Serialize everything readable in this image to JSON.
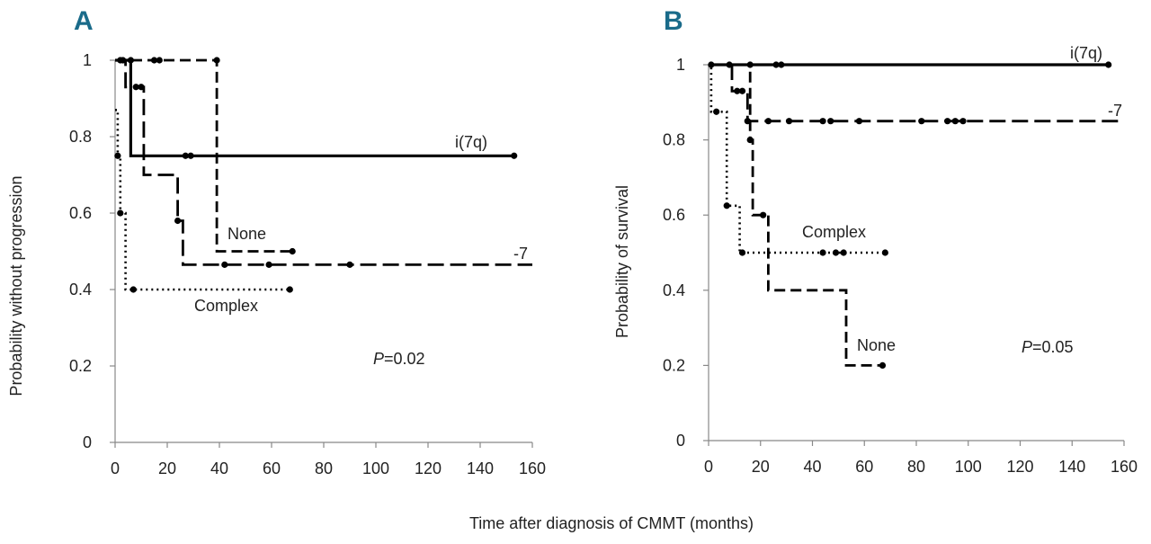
{
  "figure": {
    "shared_xlabel": "Time after diagnosis of CMMT (months)"
  },
  "chart_data": [
    {
      "type": "line",
      "panel": "A",
      "ylabel": "Probability without progression",
      "xlim": [
        0,
        160
      ],
      "ylim": [
        0,
        1
      ],
      "xticks": [
        "0",
        "20",
        "40",
        "60",
        "80",
        "100",
        "120",
        "140",
        "160"
      ],
      "yticks": [
        "0",
        "0.2",
        "0.4",
        "0.6",
        "0.8",
        "1"
      ],
      "pvalue": {
        "italic": "P",
        "rest": "=0.02"
      },
      "series": [
        {
          "name": "i(7q)",
          "style": "solid",
          "steps": [
            [
              0,
              1
            ],
            [
              6,
              1
            ],
            [
              6,
              0.75
            ],
            [
              153,
              0.75
            ]
          ],
          "censor": [
            [
              3,
              1
            ],
            [
              6,
              1
            ],
            [
              27,
              0.75
            ],
            [
              29,
              0.75
            ],
            [
              153,
              0.75
            ]
          ]
        },
        {
          "name": "None",
          "style": "dashed",
          "steps": [
            [
              0,
              1
            ],
            [
              39,
              1
            ],
            [
              39,
              0.5
            ],
            [
              68,
              0.5
            ]
          ],
          "censor": [
            [
              2,
              1
            ],
            [
              15,
              1
            ],
            [
              17,
              1
            ],
            [
              39,
              1
            ],
            [
              68,
              0.5
            ]
          ]
        },
        {
          "name": "-7",
          "style": "longdash",
          "steps": [
            [
              0,
              1
            ],
            [
              4,
              1
            ],
            [
              4,
              0.93
            ],
            [
              11,
              0.93
            ],
            [
              11,
              0.7
            ],
            [
              24,
              0.7
            ],
            [
              24,
              0.58
            ],
            [
              26,
              0.58
            ],
            [
              26,
              0.465
            ],
            [
              160,
              0.465
            ]
          ],
          "censor": [
            [
              8,
              0.93
            ],
            [
              10,
              0.93
            ],
            [
              24,
              0.58
            ],
            [
              42,
              0.465
            ],
            [
              59,
              0.465
            ],
            [
              90,
              0.465
            ]
          ]
        },
        {
          "name": "Complex",
          "style": "dotted",
          "steps": [
            [
              0,
              0.87
            ],
            [
              1,
              0.87
            ],
            [
              1,
              0.75
            ],
            [
              2,
              0.75
            ],
            [
              2,
              0.6
            ],
            [
              4,
              0.6
            ],
            [
              4,
              0.4
            ],
            [
              67,
              0.4
            ]
          ],
          "censor": [
            [
              1,
              0.75
            ],
            [
              2,
              0.6
            ],
            [
              7,
              0.4
            ],
            [
              67,
              0.4
            ]
          ]
        }
      ],
      "labels": {
        "i(7q)": "i(7q)",
        "None": "None",
        "-7": "-7",
        "Complex": "Complex"
      }
    },
    {
      "type": "line",
      "panel": "B",
      "ylabel": "Probability of survival",
      "xlim": [
        0,
        160
      ],
      "ylim": [
        0,
        1
      ],
      "xticks": [
        "0",
        "20",
        "40",
        "60",
        "80",
        "100",
        "120",
        "140",
        "160"
      ],
      "yticks": [
        "0",
        "0.2",
        "0.4",
        "0.6",
        "0.8",
        "1"
      ],
      "pvalue": {
        "italic": "P",
        "rest": "=0.05"
      },
      "series": [
        {
          "name": "i(7q)",
          "style": "solid",
          "steps": [
            [
              0,
              1
            ],
            [
              154,
              1
            ]
          ],
          "censor": [
            [
              1,
              1
            ],
            [
              8,
              1
            ],
            [
              16,
              1
            ],
            [
              26,
              1
            ],
            [
              28,
              1
            ],
            [
              154,
              1
            ]
          ]
        },
        {
          "name": "-7",
          "style": "longdash",
          "steps": [
            [
              0,
              1
            ],
            [
              9,
              1
            ],
            [
              9,
              0.93
            ],
            [
              15,
              0.93
            ],
            [
              15,
              0.85
            ],
            [
              160,
              0.85
            ]
          ],
          "censor": [
            [
              11,
              0.93
            ],
            [
              13,
              0.93
            ],
            [
              15,
              0.85
            ],
            [
              23,
              0.85
            ],
            [
              31,
              0.85
            ],
            [
              44,
              0.85
            ],
            [
              47,
              0.85
            ],
            [
              58,
              0.85
            ],
            [
              82,
              0.85
            ],
            [
              92,
              0.85
            ],
            [
              95,
              0.85
            ],
            [
              98,
              0.85
            ]
          ]
        },
        {
          "name": "None",
          "style": "dashed",
          "steps": [
            [
              0,
              1
            ],
            [
              16,
              1
            ],
            [
              16,
              0.8
            ],
            [
              17,
              0.8
            ],
            [
              17,
              0.6
            ],
            [
              23,
              0.6
            ],
            [
              23,
              0.4
            ],
            [
              53,
              0.4
            ],
            [
              53,
              0.2
            ],
            [
              67,
              0.2
            ]
          ],
          "censor": [
            [
              16,
              0.8
            ],
            [
              21,
              0.6
            ],
            [
              67,
              0.2
            ]
          ]
        },
        {
          "name": "Complex",
          "style": "dotted",
          "steps": [
            [
              0,
              1
            ],
            [
              1,
              1
            ],
            [
              1,
              0.875
            ],
            [
              7,
              0.875
            ],
            [
              7,
              0.625
            ],
            [
              12,
              0.625
            ],
            [
              12,
              0.5
            ],
            [
              68,
              0.5
            ]
          ],
          "censor": [
            [
              3,
              0.875
            ],
            [
              7,
              0.625
            ],
            [
              13,
              0.5
            ],
            [
              44,
              0.5
            ],
            [
              49,
              0.5
            ],
            [
              52,
              0.5
            ],
            [
              68,
              0.5
            ]
          ]
        }
      ],
      "labels": {
        "i(7q)": "i(7q)",
        "None": "None",
        "-7": "-7",
        "Complex": "Complex"
      }
    }
  ]
}
